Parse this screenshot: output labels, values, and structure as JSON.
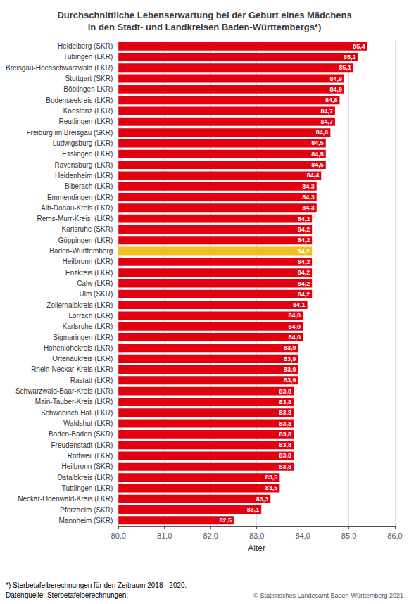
{
  "chart_data": {
    "type": "bar",
    "orientation": "horizontal",
    "title": "Durchschnittliche Lebenserwartung bei der Geburt eines Mädchens\nin den Stadt- und Landkreisen Baden-Württembergs*)",
    "xlabel": "Alter",
    "annotations": [
      "*) Sterbetafelberechnungen für den Zeitraum 2018 - 2020.",
      "Datenquelle: Sterbetafelberechnungen.",
      "© Statistisches Landesamt Baden-Württemberg 2021"
    ],
    "categories": [
      "Heidelberg (SKR)",
      "Tübingen (LKR)",
      "Breisgau-Hochschwarzwald (LKR)",
      "Stuttgart (SKR)",
      "Böblingen LKR)",
      "Bodenseekreis (LKR)",
      "Konstanz (LKR)",
      "Reutlingen (LKR)",
      "Freiburg im Breisgau (SKR)",
      "Ludwigsburg (LKR)",
      "Esslingen (LKR)",
      "Ravensburg (LKR)",
      "Heidenheim (LKR)",
      "Biberach (LKR)",
      "Emmendingen (LKR)",
      "Alb-Donau-Kreis (LKR)",
      "Rems-Murr-Kreis  (LKR)",
      "Karlsruhe (SKR)",
      "Göppingen (LKR)",
      "Baden-Württemberg",
      "Heilbronn (LKR)",
      "Enzkreis (LKR)",
      "Calw (LKR)",
      "Ulm (SKR)",
      "Zollernalbkreis (LKR)",
      "Lörrach (LKR)",
      "Karlsruhe (LKR)",
      "Sigmaringen (LKR)",
      "Hohenlohekreis (LKR)",
      "Ortenaukreis (LKR)",
      "Rhein-Neckar-Kreis (LKR)",
      "Rastatt (LKR)",
      "Schwarzwald-Baar-Kreis (LKR)",
      "Main-Tauber-Kreis (LKR)",
      "Schwäbisch Hall (LKR)",
      "Waldshut (LKR)",
      "Baden-Baden (SKR)",
      "Freudenstadt (LKR)",
      "Rottweil (LKR)",
      "Heilbronn (SKR)",
      "Ostalbkreis (LKR)",
      "Tuttlingen (LKR)",
      "Neckar-Odenwald-Kreis (LKR)",
      "Pforzheim (SKR)",
      "Mannheim (SKR)"
    ],
    "values": [
      85.4,
      85.2,
      85.1,
      84.9,
      84.9,
      84.8,
      84.7,
      84.7,
      84.6,
      84.5,
      84.5,
      84.5,
      84.4,
      84.3,
      84.3,
      84.3,
      84.2,
      84.2,
      84.2,
      84.2,
      84.2,
      84.2,
      84.2,
      84.2,
      84.1,
      84.0,
      84.0,
      84.0,
      83.9,
      83.9,
      83.9,
      83.9,
      83.8,
      83.8,
      83.8,
      83.8,
      83.8,
      83.8,
      83.8,
      83.8,
      83.5,
      83.5,
      83.3,
      83.1,
      82.5
    ],
    "value_labels": [
      "85,4",
      "85,2",
      "85,1",
      "84,9",
      "84,9",
      "84,8",
      "84,7",
      "84,7",
      "84,6",
      "84,5",
      "84,5",
      "84,5",
      "84,4",
      "84,3",
      "84,3",
      "84,3",
      "84,2",
      "84,2",
      "84,2",
      "84,2",
      "84,2",
      "84,2",
      "84,2",
      "84,2",
      "84,1",
      "84,0",
      "84,0",
      "84,0",
      "83,9",
      "83,9",
      "83,9",
      "83,9",
      "83,8",
      "83,8",
      "83,8",
      "83,8",
      "83,8",
      "83,8",
      "83,8",
      "83,8",
      "83,5",
      "83,5",
      "83,3",
      "83,1",
      "82,5"
    ],
    "colors": [
      "#e2000f",
      "#e2000f",
      "#e2000f",
      "#e2000f",
      "#e2000f",
      "#e2000f",
      "#e2000f",
      "#e2000f",
      "#e2000f",
      "#e2000f",
      "#e2000f",
      "#e2000f",
      "#e2000f",
      "#e2000f",
      "#e2000f",
      "#e2000f",
      "#e2000f",
      "#e2000f",
      "#e2000f",
      "#f0c020",
      "#e2000f",
      "#e2000f",
      "#e2000f",
      "#e2000f",
      "#e2000f",
      "#e2000f",
      "#e2000f",
      "#e2000f",
      "#e2000f",
      "#e2000f",
      "#e2000f",
      "#e2000f",
      "#e2000f",
      "#e2000f",
      "#e2000f",
      "#e2000f",
      "#e2000f",
      "#e2000f",
      "#e2000f",
      "#e2000f",
      "#e2000f",
      "#e2000f",
      "#e2000f",
      "#e2000f",
      "#e2000f"
    ],
    "xlim": [
      80.0,
      86.0
    ],
    "xticks": [
      {
        "value": 80,
        "label": "80,0"
      },
      {
        "value": 81,
        "label": "81,0"
      },
      {
        "value": 82,
        "label": "82,0"
      },
      {
        "value": 83,
        "label": "83,0"
      },
      {
        "value": 84,
        "label": "84,0"
      },
      {
        "value": 85,
        "label": "85,0"
      },
      {
        "value": 86,
        "label": "86,0"
      }
    ],
    "grid": true,
    "data_labels": true
  }
}
